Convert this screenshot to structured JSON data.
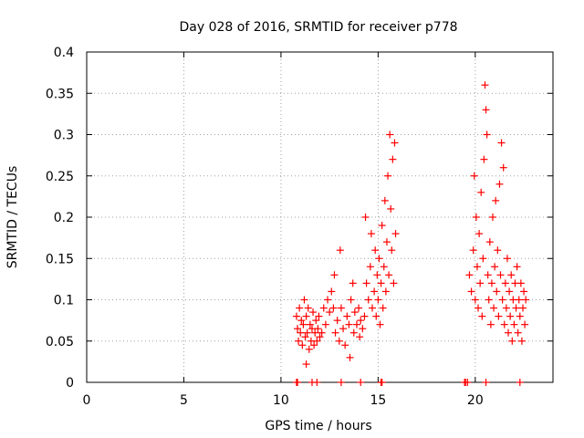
{
  "chart_data": {
    "type": "scatter",
    "title": "Day 028 of 2016, SRMTID for receiver p778",
    "xlabel": "GPS time / hours",
    "ylabel": "SRMTID / TECUs",
    "xlim": [
      0,
      24
    ],
    "ylim": [
      0,
      0.4
    ],
    "xticks": [
      0,
      5,
      10,
      15,
      20
    ],
    "xtick_labels": [
      "0",
      "5",
      "10",
      "15",
      "20"
    ],
    "yticks": [
      0,
      0.05,
      0.1,
      0.15,
      0.2,
      0.25,
      0.3,
      0.35,
      0.4
    ],
    "ytick_labels": [
      "0",
      "0.05",
      "0.1",
      "0.15",
      "0.2",
      "0.25",
      "0.3",
      "0.35",
      "0.4"
    ],
    "grid": true,
    "marker": "+",
    "color": "#ff0000",
    "series": [
      {
        "name": "SRMTID",
        "points": [
          [
            10.8,
            0.08
          ],
          [
            10.85,
            0.065
          ],
          [
            10.9,
            0.05
          ],
          [
            10.95,
            0.09
          ],
          [
            11.0,
            0.06
          ],
          [
            11.05,
            0.075
          ],
          [
            11.1,
            0.045
          ],
          [
            11.15,
            0.07
          ],
          [
            11.2,
            0.1
          ],
          [
            11.25,
            0.055
          ],
          [
            11.3,
            0.08
          ],
          [
            11.35,
            0.06
          ],
          [
            11.4,
            0.09
          ],
          [
            11.45,
            0.04
          ],
          [
            11.5,
            0.07
          ],
          [
            11.55,
            0.05
          ],
          [
            11.6,
            0.065
          ],
          [
            11.65,
            0.085
          ],
          [
            11.7,
            0.045
          ],
          [
            11.75,
            0.06
          ],
          [
            11.8,
            0.075
          ],
          [
            11.85,
            0.05
          ],
          [
            11.9,
            0.065
          ],
          [
            11.95,
            0.08
          ],
          [
            12.0,
            0.055
          ],
          [
            11.3,
            0.022
          ],
          [
            12.1,
            0.06
          ],
          [
            12.2,
            0.09
          ],
          [
            12.3,
            0.07
          ],
          [
            12.4,
            0.1
          ],
          [
            12.5,
            0.085
          ],
          [
            12.6,
            0.11
          ],
          [
            12.7,
            0.09
          ],
          [
            12.75,
            0.13
          ],
          [
            12.8,
            0.06
          ],
          [
            12.9,
            0.075
          ],
          [
            13.0,
            0.05
          ],
          [
            13.05,
            0.16
          ],
          [
            13.1,
            0.09
          ],
          [
            13.2,
            0.065
          ],
          [
            13.3,
            0.045
          ],
          [
            13.4,
            0.08
          ],
          [
            13.5,
            0.07
          ],
          [
            13.55,
            0.03
          ],
          [
            13.6,
            0.1
          ],
          [
            13.7,
            0.12
          ],
          [
            13.75,
            0.06
          ],
          [
            13.8,
            0.085
          ],
          [
            13.9,
            0.07
          ],
          [
            14.0,
            0.09
          ],
          [
            14.05,
            0.055
          ],
          [
            14.1,
            0.075
          ],
          [
            14.2,
            0.065
          ],
          [
            14.3,
            0.08
          ],
          [
            14.35,
            0.2
          ],
          [
            14.4,
            0.12
          ],
          [
            14.5,
            0.1
          ],
          [
            14.6,
            0.14
          ],
          [
            14.65,
            0.18
          ],
          [
            14.7,
            0.09
          ],
          [
            14.8,
            0.11
          ],
          [
            14.85,
            0.16
          ],
          [
            14.9,
            0.08
          ],
          [
            14.95,
            0.13
          ],
          [
            15.0,
            0.1
          ],
          [
            15.05,
            0.15
          ],
          [
            15.1,
            0.07
          ],
          [
            15.15,
            0.12
          ],
          [
            15.2,
            0.19
          ],
          [
            15.25,
            0.09
          ],
          [
            15.3,
            0.14
          ],
          [
            15.35,
            0.22
          ],
          [
            15.4,
            0.11
          ],
          [
            15.45,
            0.17
          ],
          [
            15.5,
            0.25
          ],
          [
            15.55,
            0.13
          ],
          [
            15.6,
            0.3
          ],
          [
            15.65,
            0.21
          ],
          [
            15.7,
            0.16
          ],
          [
            15.75,
            0.27
          ],
          [
            15.8,
            0.12
          ],
          [
            15.85,
            0.29
          ],
          [
            15.9,
            0.18
          ],
          [
            19.7,
            0.13
          ],
          [
            19.8,
            0.11
          ],
          [
            19.9,
            0.16
          ],
          [
            19.95,
            0.25
          ],
          [
            20.0,
            0.1
          ],
          [
            20.05,
            0.2
          ],
          [
            20.1,
            0.14
          ],
          [
            20.15,
            0.09
          ],
          [
            20.2,
            0.18
          ],
          [
            20.25,
            0.12
          ],
          [
            20.3,
            0.23
          ],
          [
            20.35,
            0.08
          ],
          [
            20.4,
            0.15
          ],
          [
            20.45,
            0.27
          ],
          [
            20.5,
            0.36
          ],
          [
            20.55,
            0.33
          ],
          [
            20.6,
            0.3
          ],
          [
            20.65,
            0.13
          ],
          [
            20.7,
            0.1
          ],
          [
            20.75,
            0.17
          ],
          [
            20.8,
            0.07
          ],
          [
            20.85,
            0.12
          ],
          [
            20.9,
            0.2
          ],
          [
            20.95,
            0.09
          ],
          [
            21.0,
            0.14
          ],
          [
            21.05,
            0.22
          ],
          [
            21.1,
            0.11
          ],
          [
            21.15,
            0.16
          ],
          [
            21.2,
            0.08
          ],
          [
            21.25,
            0.24
          ],
          [
            21.3,
            0.13
          ],
          [
            21.35,
            0.29
          ],
          [
            21.4,
            0.1
          ],
          [
            21.45,
            0.26
          ],
          [
            21.5,
            0.07
          ],
          [
            21.55,
            0.12
          ],
          [
            21.6,
            0.09
          ],
          [
            21.65,
            0.15
          ],
          [
            21.7,
            0.06
          ],
          [
            21.75,
            0.11
          ],
          [
            21.8,
            0.08
          ],
          [
            21.85,
            0.13
          ],
          [
            21.9,
            0.05
          ],
          [
            21.95,
            0.1
          ],
          [
            22.0,
            0.07
          ],
          [
            22.05,
            0.12
          ],
          [
            22.1,
            0.09
          ],
          [
            22.15,
            0.14
          ],
          [
            22.2,
            0.06
          ],
          [
            22.25,
            0.1
          ],
          [
            22.3,
            0.08
          ],
          [
            22.35,
            0.12
          ],
          [
            22.4,
            0.05
          ],
          [
            22.45,
            0.09
          ],
          [
            22.5,
            0.11
          ],
          [
            22.55,
            0.07
          ],
          [
            22.6,
            0.1
          ]
        ]
      }
    ],
    "baseline_markers": [
      [
        10.8,
        0
      ],
      [
        10.85,
        0
      ],
      [
        11.6,
        0
      ],
      [
        11.85,
        0
      ],
      [
        13.1,
        0
      ],
      [
        14.1,
        0
      ],
      [
        15.15,
        0
      ],
      [
        15.2,
        0
      ],
      [
        19.45,
        0
      ],
      [
        19.5,
        0
      ],
      [
        19.6,
        0
      ],
      [
        20.55,
        0
      ],
      [
        22.3,
        0
      ]
    ]
  }
}
